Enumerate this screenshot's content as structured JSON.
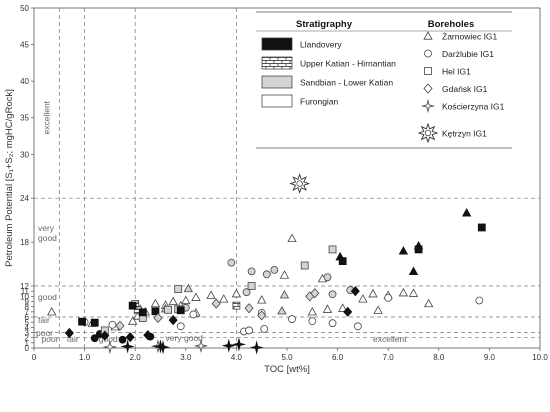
{
  "chart_data": {
    "type": "scatter",
    "xlabel": "TOC [wt%]",
    "ylabel": "Petroleum Potential [S₁+S₂; mgHC/gRock]",
    "xlim": [
      0,
      10
    ],
    "ylim": [
      0,
      50
    ],
    "x_scale": "linear",
    "y_scale": "piecewise-linear (expanded below 12, compressed above 12)",
    "grid": false,
    "x_ticks": [
      "0",
      "1.0",
      "2.0",
      "3.0",
      "4.0",
      "5.0",
      "6.0",
      "7.0",
      "8.0",
      "9.0",
      "10.0"
    ],
    "y_ticks": [
      "0",
      "1",
      "2",
      "3",
      "4",
      "5",
      "6",
      "7",
      "8",
      "9",
      "10",
      "11",
      "12",
      "18",
      "24",
      "30",
      "35",
      "40",
      "45",
      "50"
    ],
    "thresholds": {
      "toc": [
        0.5,
        1,
        2,
        4
      ],
      "pp": [
        2,
        3,
        6,
        12,
        24
      ]
    },
    "zone_labels": {
      "toc": [
        "poor",
        "fair",
        "good",
        "very good",
        "excellent"
      ],
      "pp": [
        "poor",
        "fair",
        "good",
        "very good",
        "excellent"
      ]
    },
    "legend": {
      "placement": "top-right",
      "stratigraphy_title": "Stratigraphy",
      "boreholes_title": "Boreholes",
      "stratigraphy": [
        {
          "name": "Llandovery",
          "fill": "#111111"
        },
        {
          "name": "Upper Katian - Hirnantian",
          "fill": "brick"
        },
        {
          "name": "Sandbian - Lower Katian",
          "fill": "#d4d4d4"
        },
        {
          "name": "Furongian",
          "fill": "#ffffff"
        }
      ],
      "boreholes": [
        {
          "name": "Żarnowiec IG1",
          "marker": "triangle"
        },
        {
          "name": "Darżlubie IG1",
          "marker": "circle"
        },
        {
          "name": "Hel IG1",
          "marker": "square"
        },
        {
          "name": "Gdańsk IG1",
          "marker": "diamond"
        },
        {
          "name": "Kościerzyna IG1",
          "marker": "star4"
        },
        {
          "name": "Kętrzyn IG1",
          "marker": "star8"
        }
      ]
    },
    "points": [
      {
        "x": 0.35,
        "y": 7.0,
        "marker": "triangle",
        "fill": "#ffffff"
      },
      {
        "x": 1.15,
        "y": 4.8,
        "marker": "triangle",
        "fill": "#ffffff"
      },
      {
        "x": 1.6,
        "y": 4.1,
        "marker": "triangle",
        "fill": "#ffffff"
      },
      {
        "x": 1.95,
        "y": 5.2,
        "marker": "triangle",
        "fill": "#ffffff"
      },
      {
        "x": 2.05,
        "y": 6.2,
        "marker": "triangle",
        "fill": "#ffffff"
      },
      {
        "x": 2.1,
        "y": 7.5,
        "marker": "triangle",
        "fill": "#ffffff"
      },
      {
        "x": 2.2,
        "y": 7.0,
        "marker": "triangle",
        "fill": "#ffffff"
      },
      {
        "x": 2.4,
        "y": 8.6,
        "marker": "triangle",
        "fill": "#ffffff"
      },
      {
        "x": 2.6,
        "y": 8.3,
        "marker": "triangle",
        "fill": "#ffffff"
      },
      {
        "x": 2.75,
        "y": 9.0,
        "marker": "triangle",
        "fill": "#ffffff"
      },
      {
        "x": 2.9,
        "y": 8.2,
        "marker": "triangle",
        "fill": "#ffffff"
      },
      {
        "x": 3.0,
        "y": 9.2,
        "marker": "triangle",
        "fill": "#ffffff"
      },
      {
        "x": 3.2,
        "y": 9.8,
        "marker": "triangle",
        "fill": "#ffffff"
      },
      {
        "x": 3.5,
        "y": 10.2,
        "marker": "triangle",
        "fill": "#ffffff"
      },
      {
        "x": 3.75,
        "y": 9.5,
        "marker": "triangle",
        "fill": "#ffffff"
      },
      {
        "x": 4.0,
        "y": 10.5,
        "marker": "triangle",
        "fill": "#ffffff"
      },
      {
        "x": 4.5,
        "y": 9.3,
        "marker": "triangle",
        "fill": "#ffffff"
      },
      {
        "x": 4.95,
        "y": 13.5,
        "marker": "triangle",
        "fill": "#ffffff"
      },
      {
        "x": 5.1,
        "y": 18.5,
        "marker": "triangle",
        "fill": "#ffffff"
      },
      {
        "x": 5.7,
        "y": 13.0,
        "marker": "triangle",
        "fill": "#ffffff"
      },
      {
        "x": 5.5,
        "y": 7.0,
        "marker": "triangle",
        "fill": "#ffffff"
      },
      {
        "x": 5.8,
        "y": 7.5,
        "marker": "triangle",
        "fill": "#ffffff"
      },
      {
        "x": 6.1,
        "y": 7.7,
        "marker": "triangle",
        "fill": "#ffffff"
      },
      {
        "x": 6.5,
        "y": 9.5,
        "marker": "triangle",
        "fill": "#ffffff"
      },
      {
        "x": 6.7,
        "y": 10.5,
        "marker": "triangle",
        "fill": "#ffffff"
      },
      {
        "x": 6.8,
        "y": 7.3,
        "marker": "triangle",
        "fill": "#ffffff"
      },
      {
        "x": 7.0,
        "y": 10.2,
        "marker": "triangle",
        "fill": "#ffffff"
      },
      {
        "x": 7.3,
        "y": 10.7,
        "marker": "triangle",
        "fill": "#ffffff"
      },
      {
        "x": 7.5,
        "y": 10.6,
        "marker": "triangle",
        "fill": "#ffffff"
      },
      {
        "x": 7.8,
        "y": 8.6,
        "marker": "triangle",
        "fill": "#ffffff"
      },
      {
        "x": 3.2,
        "y": 6.8,
        "marker": "triangle",
        "fill": "#ffffff"
      },
      {
        "x": 3.05,
        "y": 11.5,
        "marker": "triangle",
        "fill": "#d4d4d4"
      },
      {
        "x": 4.9,
        "y": 7.2,
        "marker": "triangle",
        "fill": "#d4d4d4"
      },
      {
        "x": 4.95,
        "y": 10.3,
        "marker": "triangle",
        "fill": "#d4d4d4"
      },
      {
        "x": 2.6,
        "y": 7.6,
        "marker": "triangle",
        "fill": "#d4d4d4"
      },
      {
        "x": 6.05,
        "y": 16.0,
        "marker": "triangle",
        "fill": "#111111"
      },
      {
        "x": 7.3,
        "y": 16.8,
        "marker": "triangle",
        "fill": "#111111"
      },
      {
        "x": 7.5,
        "y": 14.0,
        "marker": "triangle",
        "fill": "#111111"
      },
      {
        "x": 7.6,
        "y": 17.5,
        "marker": "triangle",
        "fill": "#111111"
      },
      {
        "x": 8.55,
        "y": 22.0,
        "marker": "triangle",
        "fill": "#111111"
      },
      {
        "x": 1.0,
        "y": 5.0,
        "marker": "circle",
        "fill": "#ffffff"
      },
      {
        "x": 1.55,
        "y": 4.5,
        "marker": "circle",
        "fill": "#ffffff"
      },
      {
        "x": 2.9,
        "y": 4.2,
        "marker": "circle",
        "fill": "#ffffff"
      },
      {
        "x": 3.15,
        "y": 6.5,
        "marker": "circle",
        "fill": "#ffffff"
      },
      {
        "x": 4.15,
        "y": 3.2,
        "marker": "circle",
        "fill": "#ffffff"
      },
      {
        "x": 4.25,
        "y": 3.4,
        "marker": "circle",
        "fill": "#ffffff"
      },
      {
        "x": 4.55,
        "y": 3.7,
        "marker": "circle",
        "fill": "#ffffff"
      },
      {
        "x": 4.5,
        "y": 6.8,
        "marker": "circle",
        "fill": "#ffffff"
      },
      {
        "x": 5.1,
        "y": 5.6,
        "marker": "circle",
        "fill": "#ffffff"
      },
      {
        "x": 5.5,
        "y": 5.2,
        "marker": "circle",
        "fill": "#ffffff"
      },
      {
        "x": 5.9,
        "y": 4.8,
        "marker": "circle",
        "fill": "#ffffff"
      },
      {
        "x": 6.4,
        "y": 4.2,
        "marker": "circle",
        "fill": "#ffffff"
      },
      {
        "x": 7.0,
        "y": 9.7,
        "marker": "circle",
        "fill": "#ffffff"
      },
      {
        "x": 8.8,
        "y": 9.2,
        "marker": "circle",
        "fill": "#ffffff"
      },
      {
        "x": 3.9,
        "y": 15.2,
        "marker": "circle",
        "fill": "#d4d4d4"
      },
      {
        "x": 4.3,
        "y": 14.0,
        "marker": "circle",
        "fill": "#d4d4d4"
      },
      {
        "x": 4.6,
        "y": 13.6,
        "marker": "circle",
        "fill": "#d4d4d4"
      },
      {
        "x": 4.75,
        "y": 14.2,
        "marker": "circle",
        "fill": "#d4d4d4"
      },
      {
        "x": 5.8,
        "y": 13.2,
        "marker": "circle",
        "fill": "#d4d4d4"
      },
      {
        "x": 5.9,
        "y": 10.4,
        "marker": "circle",
        "fill": "#d4d4d4"
      },
      {
        "x": 3.0,
        "y": 7.8,
        "marker": "circle",
        "fill": "#d4d4d4"
      },
      {
        "x": 4.2,
        "y": 10.8,
        "marker": "circle",
        "fill": "#d4d4d4"
      },
      {
        "x": 6.25,
        "y": 11.2,
        "marker": "circle",
        "fill": "#d4d4d4"
      },
      {
        "x": 1.3,
        "y": 2.7,
        "marker": "circle",
        "fill": "#111111"
      },
      {
        "x": 1.75,
        "y": 1.6,
        "marker": "circle",
        "fill": "#111111"
      },
      {
        "x": 2.3,
        "y": 2.2,
        "marker": "circle",
        "fill": "#111111"
      },
      {
        "x": 1.2,
        "y": 1.9,
        "marker": "circle",
        "fill": "#111111"
      },
      {
        "x": 1.4,
        "y": 3.4,
        "marker": "square",
        "fill": "#d4d4d4"
      },
      {
        "x": 2.15,
        "y": 5.8,
        "marker": "square",
        "fill": "#d4d4d4"
      },
      {
        "x": 2.65,
        "y": 7.4,
        "marker": "square",
        "fill": "#d4d4d4"
      },
      {
        "x": 2.85,
        "y": 7.5,
        "marker": "square",
        "fill": "#d4d4d4"
      },
      {
        "x": 2.85,
        "y": 11.4,
        "marker": "square",
        "fill": "#d4d4d4"
      },
      {
        "x": 4.3,
        "y": 12.0,
        "marker": "square",
        "fill": "#d4d4d4"
      },
      {
        "x": 5.35,
        "y": 14.8,
        "marker": "square",
        "fill": "#d4d4d4"
      },
      {
        "x": 5.9,
        "y": 17.0,
        "marker": "square",
        "fill": "#d4d4d4"
      },
      {
        "x": 4.0,
        "y": 8.2,
        "marker": "square",
        "fill": "brick"
      },
      {
        "x": 2.0,
        "y": 8.5,
        "marker": "square",
        "fill": "brick"
      },
      {
        "x": 2.05,
        "y": 7.3,
        "marker": "square",
        "fill": "brick"
      },
      {
        "x": 0.95,
        "y": 5.1,
        "marker": "square",
        "fill": "#111111"
      },
      {
        "x": 1.2,
        "y": 4.9,
        "marker": "square",
        "fill": "#111111"
      },
      {
        "x": 1.95,
        "y": 8.2,
        "marker": "square",
        "fill": "#111111"
      },
      {
        "x": 2.15,
        "y": 6.9,
        "marker": "square",
        "fill": "#111111"
      },
      {
        "x": 2.4,
        "y": 7.1,
        "marker": "square",
        "fill": "#111111"
      },
      {
        "x": 2.9,
        "y": 7.3,
        "marker": "square",
        "fill": "#111111"
      },
      {
        "x": 6.1,
        "y": 15.4,
        "marker": "square",
        "fill": "#111111"
      },
      {
        "x": 7.6,
        "y": 17.0,
        "marker": "square",
        "fill": "#111111"
      },
      {
        "x": 8.85,
        "y": 20.0,
        "marker": "square",
        "fill": "#111111"
      },
      {
        "x": 1.7,
        "y": 4.3,
        "marker": "diamond",
        "fill": "#d4d4d4"
      },
      {
        "x": 2.45,
        "y": 5.8,
        "marker": "diamond",
        "fill": "#d4d4d4"
      },
      {
        "x": 3.6,
        "y": 8.6,
        "marker": "diamond",
        "fill": "#d4d4d4"
      },
      {
        "x": 4.25,
        "y": 7.7,
        "marker": "diamond",
        "fill": "#d4d4d4"
      },
      {
        "x": 4.5,
        "y": 6.3,
        "marker": "diamond",
        "fill": "#d4d4d4"
      },
      {
        "x": 5.45,
        "y": 10.0,
        "marker": "diamond",
        "fill": "#d4d4d4"
      },
      {
        "x": 5.55,
        "y": 10.6,
        "marker": "diamond",
        "fill": "#d4d4d4"
      },
      {
        "x": 0.7,
        "y": 2.9,
        "marker": "diamond",
        "fill": "#111111"
      },
      {
        "x": 1.4,
        "y": 2.4,
        "marker": "diamond",
        "fill": "#111111"
      },
      {
        "x": 1.9,
        "y": 2.1,
        "marker": "diamond",
        "fill": "#111111"
      },
      {
        "x": 2.25,
        "y": 2.5,
        "marker": "diamond",
        "fill": "#111111"
      },
      {
        "x": 2.75,
        "y": 5.4,
        "marker": "diamond",
        "fill": "#111111"
      },
      {
        "x": 6.2,
        "y": 7.0,
        "marker": "diamond",
        "fill": "#111111"
      },
      {
        "x": 6.35,
        "y": 11.0,
        "marker": "diamond",
        "fill": "#111111"
      },
      {
        "x": 1.5,
        "y": 0.2,
        "marker": "star4",
        "fill": "#ffffff"
      },
      {
        "x": 3.3,
        "y": 0.4,
        "marker": "star4",
        "fill": "#ffffff"
      },
      {
        "x": 2.45,
        "y": 0.35,
        "marker": "star4",
        "fill": "#ffffff"
      },
      {
        "x": 1.85,
        "y": 0.3,
        "marker": "star4",
        "fill": "#111111"
      },
      {
        "x": 2.5,
        "y": 0.3,
        "marker": "star4",
        "fill": "#111111"
      },
      {
        "x": 2.55,
        "y": 0.15,
        "marker": "star4",
        "fill": "#111111"
      },
      {
        "x": 3.85,
        "y": 0.45,
        "marker": "star4",
        "fill": "#111111"
      },
      {
        "x": 4.05,
        "y": 0.7,
        "marker": "star4",
        "fill": "#111111"
      },
      {
        "x": 4.4,
        "y": 0.1,
        "marker": "star4",
        "fill": "#111111"
      },
      {
        "x": 5.25,
        "y": 26.0,
        "marker": "star8",
        "fill": "#ffffff"
      }
    ]
  }
}
